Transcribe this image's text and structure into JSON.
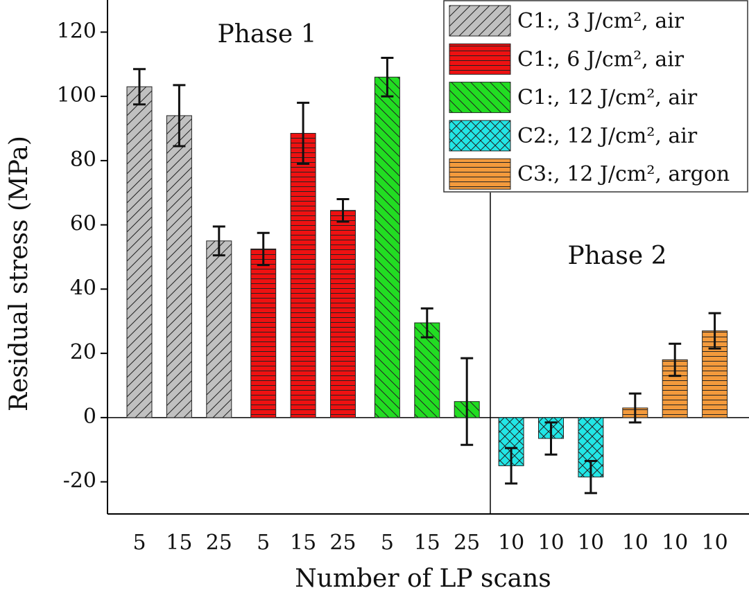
{
  "chart_data": {
    "type": "bar",
    "xlabel": "Number of LP scans",
    "ylabel": "Residual stress (MPa)",
    "annotations": [
      "Phase 1",
      "Phase 2"
    ],
    "categories": [
      "5",
      "15",
      "25",
      "5",
      "15",
      "25",
      "5",
      "15",
      "25",
      "10",
      "10",
      "10",
      "10",
      "10",
      "10"
    ],
    "ylim": [
      -30,
      130
    ],
    "yticks": [
      -20,
      0,
      20,
      40,
      60,
      80,
      100,
      120
    ],
    "legend": "upper right",
    "series": [
      {
        "name": "C1:, 3 J/cm², air",
        "color": "#c0c0c0",
        "hatch": "/",
        "values": [
          103,
          94,
          55,
          null,
          null,
          null,
          null,
          null,
          null,
          null,
          null,
          null,
          null,
          null,
          null
        ],
        "errors": [
          5.5,
          9.5,
          4.5,
          null,
          null,
          null,
          null,
          null,
          null,
          null,
          null,
          null,
          null,
          null,
          null
        ]
      },
      {
        "name": "C1:, 6 J/cm², air",
        "color": "#ee1111",
        "hatch": "-",
        "values": [
          null,
          null,
          null,
          52.5,
          88.5,
          64.5,
          null,
          null,
          null,
          null,
          null,
          null,
          null,
          null,
          null
        ],
        "errors": [
          null,
          null,
          null,
          5,
          9.5,
          3.5,
          null,
          null,
          null,
          null,
          null,
          null,
          null,
          null,
          null
        ]
      },
      {
        "name": "C1:, 12 J/cm², air",
        "color": "#22dd22",
        "hatch": "\\",
        "values": [
          null,
          null,
          null,
          null,
          null,
          null,
          106,
          29.5,
          5,
          null,
          null,
          null,
          null,
          null,
          null
        ],
        "errors": [
          null,
          null,
          null,
          null,
          null,
          null,
          6,
          4.5,
          13.5,
          null,
          null,
          null,
          null,
          null,
          null
        ]
      },
      {
        "name": "C2:, 12 J/cm², air",
        "color": "#22e6e6",
        "hatch": "x",
        "values": [
          null,
          null,
          null,
          null,
          null,
          null,
          null,
          null,
          null,
          -15,
          -6.5,
          -18.5,
          null,
          null,
          null
        ],
        "errors": [
          null,
          null,
          null,
          null,
          null,
          null,
          null,
          null,
          null,
          5.5,
          5,
          5,
          null,
          null,
          null
        ]
      },
      {
        "name": "C3:, 12 J/cm², argon",
        "color": "#f39a3c",
        "hatch": "-",
        "values": [
          null,
          null,
          null,
          null,
          null,
          null,
          null,
          null,
          null,
          null,
          null,
          null,
          3,
          18,
          27
        ],
        "errors": [
          null,
          null,
          null,
          null,
          null,
          null,
          null,
          null,
          null,
          null,
          null,
          null,
          4.5,
          5,
          5.5
        ]
      }
    ]
  }
}
